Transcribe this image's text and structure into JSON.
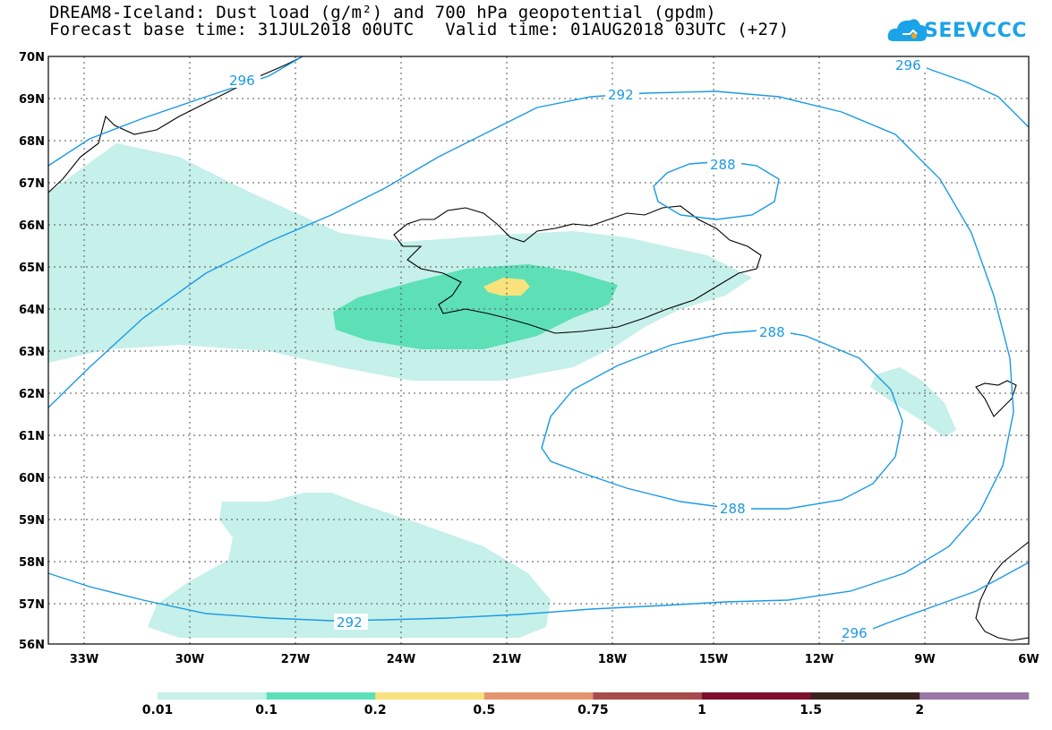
{
  "title_line1": "DREAM8-Iceland: Dust load (g/m²) and 700 hPa geopotential (gpdm)",
  "title_line2": "Forecast base time: 31JUL2018 00UTC   Valid time: 01AUG2018 03UTC (+27)",
  "logo_text": "SEEVCCC",
  "axes": {
    "lat_labels": [
      "70N",
      "69N",
      "68N",
      "67N",
      "66N",
      "65N",
      "64N",
      "63N",
      "62N",
      "61N",
      "60N",
      "59N",
      "58N",
      "57N",
      "56N"
    ],
    "lon_labels": [
      "33W",
      "30W",
      "27W",
      "24W",
      "21W",
      "18W",
      "15W",
      "12W",
      "9W",
      "6W"
    ]
  },
  "contour_labels": [
    "296",
    "292",
    "288",
    "288",
    "288",
    "292",
    "296",
    "296"
  ],
  "colorbar": {
    "colors": [
      "#c6f0ea",
      "#5de0b6",
      "#f7e27c",
      "#e49570",
      "#a74c4c",
      "#7d0f2f",
      "#3a2420",
      "#9b76a6"
    ],
    "labels": [
      "0.01",
      "0.1",
      "0.2",
      "0.5",
      "0.75",
      "1",
      "1.5",
      "2"
    ]
  },
  "colors": {
    "contour": "#1b9ae4",
    "coast": "#000000"
  }
}
